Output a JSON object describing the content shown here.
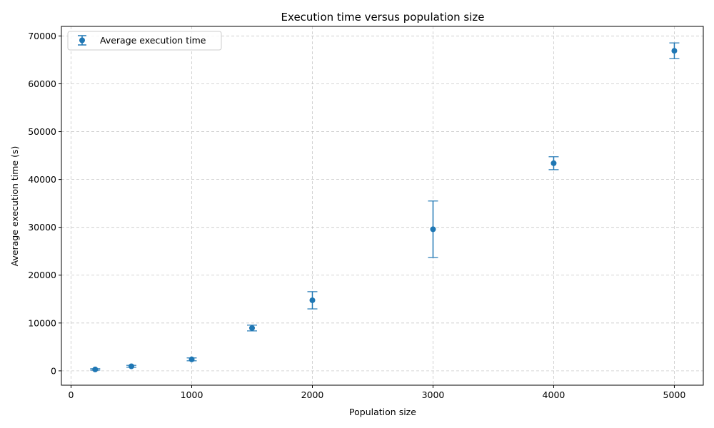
{
  "chart_data": {
    "type": "scatter",
    "title": "Execution time versus population size",
    "xlabel": "Population size",
    "ylabel": "Average execution time (s)",
    "xlim": [
      -80,
      5240
    ],
    "ylim": [
      -3000,
      72000
    ],
    "xticks": [
      0,
      1000,
      2000,
      3000,
      4000,
      5000
    ],
    "yticks": [
      0,
      10000,
      20000,
      30000,
      40000,
      50000,
      60000,
      70000
    ],
    "grid": true,
    "grid_style": "dashed",
    "legend_position": "top-left",
    "series": [
      {
        "name": "Average execution time",
        "color": "#1f77b4",
        "marker": "circle",
        "error_bars": true,
        "points": [
          {
            "x": 200,
            "y": 300,
            "err": 150
          },
          {
            "x": 500,
            "y": 950,
            "err": 200
          },
          {
            "x": 1000,
            "y": 2400,
            "err": 300
          },
          {
            "x": 1500,
            "y": 8950,
            "err": 600
          },
          {
            "x": 2000,
            "y": 14750,
            "err": 1800
          },
          {
            "x": 3000,
            "y": 29600,
            "err": 5900
          },
          {
            "x": 4000,
            "y": 43400,
            "err": 1350
          },
          {
            "x": 5000,
            "y": 66900,
            "err": 1650
          }
        ]
      }
    ]
  }
}
